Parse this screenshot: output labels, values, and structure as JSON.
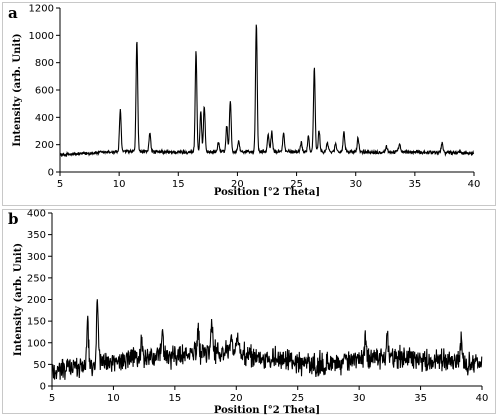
{
  "chart_data": [
    {
      "type": "line",
      "panel_label": "a",
      "xlabel": "Position [°2 Theta]",
      "ylabel": "Intensity (arb. Unit)",
      "xlim": [
        5,
        40
      ],
      "ylim": [
        0,
        1200
      ],
      "xticks": [
        5,
        10,
        15,
        20,
        25,
        30,
        35,
        40
      ],
      "yticks": [
        0,
        200,
        400,
        600,
        800,
        1000,
        1200
      ],
      "grid": false,
      "baseline": [
        [
          5.0,
          125
        ],
        [
          8.0,
          140
        ],
        [
          10.0,
          150
        ],
        [
          15.0,
          145
        ],
        [
          20.0,
          148
        ],
        [
          25.0,
          150
        ],
        [
          30.0,
          148
        ],
        [
          35.0,
          145
        ],
        [
          40.0,
          142
        ]
      ],
      "noise": 12,
      "peaks": [
        {
          "x": 10.1,
          "y": 450
        },
        {
          "x": 11.5,
          "y": 965
        },
        {
          "x": 12.6,
          "y": 295
        },
        {
          "x": 16.5,
          "y": 885
        },
        {
          "x": 16.9,
          "y": 440
        },
        {
          "x": 17.2,
          "y": 485
        },
        {
          "x": 18.4,
          "y": 220
        },
        {
          "x": 19.1,
          "y": 340
        },
        {
          "x": 19.4,
          "y": 530
        },
        {
          "x": 20.1,
          "y": 230
        },
        {
          "x": 21.6,
          "y": 1090
        },
        {
          "x": 22.6,
          "y": 270
        },
        {
          "x": 22.9,
          "y": 290
        },
        {
          "x": 23.9,
          "y": 285
        },
        {
          "x": 25.4,
          "y": 215
        },
        {
          "x": 26.0,
          "y": 260
        },
        {
          "x": 26.5,
          "y": 760
        },
        {
          "x": 26.9,
          "y": 300
        },
        {
          "x": 27.6,
          "y": 215
        },
        {
          "x": 28.3,
          "y": 210
        },
        {
          "x": 29.0,
          "y": 290
        },
        {
          "x": 30.2,
          "y": 250
        },
        {
          "x": 32.6,
          "y": 190
        },
        {
          "x": 33.7,
          "y": 205
        },
        {
          "x": 37.3,
          "y": 215
        }
      ]
    },
    {
      "type": "line",
      "panel_label": "b",
      "xlabel": "Position [°2 Theta]",
      "ylabel": "Intensity (arb. Unit)",
      "xlim": [
        5,
        40
      ],
      "ylim": [
        0,
        400
      ],
      "xticks": [
        5,
        10,
        15,
        20,
        25,
        30,
        35,
        40
      ],
      "yticks": [
        0,
        50,
        100,
        150,
        200,
        250,
        300,
        350,
        400
      ],
      "grid": false,
      "baseline": [
        [
          5.0,
          35
        ],
        [
          7.0,
          45
        ],
        [
          10.0,
          55
        ],
        [
          12.0,
          65
        ],
        [
          15.0,
          70
        ],
        [
          18.0,
          80
        ],
        [
          20.0,
          75
        ],
        [
          22.0,
          65
        ],
        [
          25.0,
          55
        ],
        [
          27.0,
          50
        ],
        [
          30.0,
          60
        ],
        [
          32.0,
          70
        ],
        [
          35.0,
          60
        ],
        [
          38.0,
          55
        ],
        [
          40.0,
          50
        ]
      ],
      "noise": 22,
      "peaks": [
        {
          "x": 7.9,
          "y": 160
        },
        {
          "x": 8.7,
          "y": 210
        },
        {
          "x": 12.3,
          "y": 105
        },
        {
          "x": 14.0,
          "y": 120
        },
        {
          "x": 16.9,
          "y": 130
        },
        {
          "x": 18.0,
          "y": 145
        },
        {
          "x": 19.6,
          "y": 110
        },
        {
          "x": 20.1,
          "y": 120
        },
        {
          "x": 30.5,
          "y": 110
        },
        {
          "x": 32.3,
          "y": 125
        },
        {
          "x": 38.3,
          "y": 115
        }
      ]
    }
  ]
}
